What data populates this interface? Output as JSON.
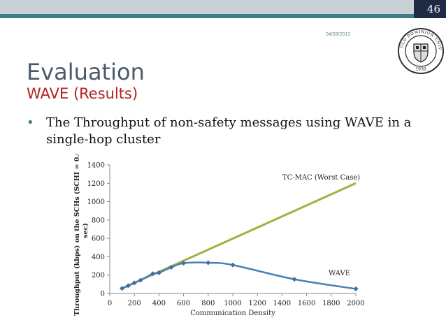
{
  "slide": {
    "number": "46",
    "date": "04/03/2013",
    "title": "Evaluation",
    "subtitle": "WAVE (Results)",
    "bullet_text": "The Throughput of non-safety messages using WAVE in a single-hop cluster"
  },
  "seal": {
    "top_text": "OLD DOMINION UNIVERSITY",
    "year": "1930"
  },
  "colors": {
    "top_bar": "#c9d0d6",
    "accent_teal": "#3d7d86",
    "corner_navy": "#1f2a44",
    "subtitle_red": "#b02323",
    "wave_series": "#4a7fb5",
    "tcmac_series": "#a8ad3f"
  },
  "chart_data": {
    "type": "line",
    "title": "",
    "xlabel": "Communication Density",
    "ylabel": "Throughput (kbps) on the SCHs (SCHI = 0.05 sec)",
    "xlim": [
      0,
      2000
    ],
    "ylim": [
      0,
      1400
    ],
    "x_ticks": [
      0,
      200,
      400,
      600,
      800,
      1000,
      1200,
      1400,
      1600,
      1800,
      2000
    ],
    "y_ticks": [
      0,
      200,
      400,
      600,
      800,
      1000,
      1200,
      1400
    ],
    "grid": false,
    "legend": "inline labels",
    "series": [
      {
        "name": "WAVE",
        "marker": "diamond",
        "x": [
          100,
          150,
          200,
          250,
          350,
          400,
          500,
          600,
          800,
          1000,
          1500,
          2000
        ],
        "y": [
          55,
          85,
          115,
          145,
          215,
          225,
          285,
          330,
          335,
          310,
          155,
          50
        ]
      },
      {
        "name": "TC-MAC (Worst Case)",
        "marker": "none",
        "x": [
          100,
          2000
        ],
        "y": [
          55,
          1200
        ]
      }
    ]
  }
}
